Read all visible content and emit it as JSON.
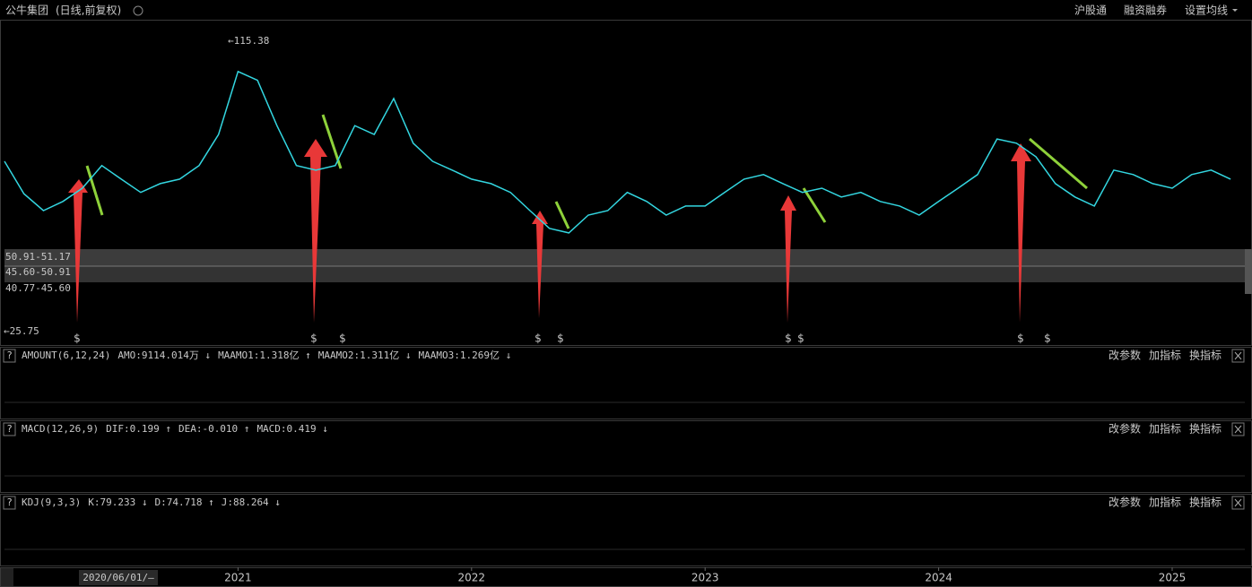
{
  "header": {
    "title": "公牛集团",
    "subtitle": "(日线,前复权)",
    "buttons": [
      "沪股通",
      "融资融券",
      "设置均线"
    ]
  },
  "chart_data": {
    "type": "line",
    "color": "#33d6e0",
    "categories": [
      null,
      null,
      null,
      null,
      null,
      null,
      null,
      null,
      null,
      null,
      null,
      null,
      "2021",
      null,
      null,
      null,
      null,
      null,
      null,
      null,
      null,
      null,
      null,
      null,
      "2022",
      null,
      null,
      null,
      null,
      null,
      null,
      null,
      null,
      null,
      null,
      null,
      "2023",
      null,
      null,
      null,
      null,
      null,
      null,
      null,
      null,
      null,
      null,
      null,
      "2024",
      null,
      null,
      null,
      null,
      null,
      null,
      null,
      null,
      null,
      null,
      null,
      "2025",
      null,
      null,
      null
    ],
    "values": [
      78,
      68,
      62.8,
      65.6,
      69.7,
      76.7,
      72.5,
      68.4,
      71.1,
      72.5,
      76.7,
      86.3,
      105.7,
      103,
      89,
      76.7,
      75.3,
      76.7,
      89,
      86.3,
      97.4,
      83.6,
      78,
      75.3,
      72.5,
      71.1,
      68.4,
      62.8,
      57.3,
      55.9,
      61.4,
      62.8,
      68.4,
      65.6,
      61.4,
      64.2,
      64.2,
      68.4,
      72.5,
      73.9,
      71.1,
      68.4,
      69.7,
      67,
      68.4,
      65.6,
      64.2,
      61.4,
      65.6,
      69.7,
      73.9,
      84.9,
      83.6,
      79.4,
      71.1,
      67,
      64.2,
      75.3,
      73.9,
      71.1,
      69.7,
      73.9,
      75.3,
      72.5
    ],
    "ylim": [
      21.3,
      121.7
    ],
    "annotations": {
      "high": "←115.38",
      "low": "←25.75"
    },
    "price_bands": [
      "50.91-51.17",
      "45.60-50.91",
      "40.77-45.60"
    ],
    "signal_label": "$",
    "date_label": "2020/06/01/—"
  },
  "panels": [
    {
      "name": "AMOUNT(6,12,24)",
      "items": [
        "AMO:9114.014万 ↓",
        "MAAMO1:1.318亿 ↑",
        "MAAMO2:1.311亿 ↓",
        "MAAMO3:1.269亿 ↓"
      ]
    },
    {
      "name": "MACD(12,26,9)",
      "items": [
        "DIF:0.199 ↑",
        "DEA:-0.010 ↑",
        "MACD:0.419 ↓"
      ]
    },
    {
      "name": "KDJ(9,3,3)",
      "items": [
        "K:79.233 ↓",
        "D:74.718 ↑",
        "J:88.264 ↓"
      ]
    }
  ],
  "panel_buttons": [
    "改参数",
    "加指标",
    "换指标"
  ],
  "help": "?"
}
